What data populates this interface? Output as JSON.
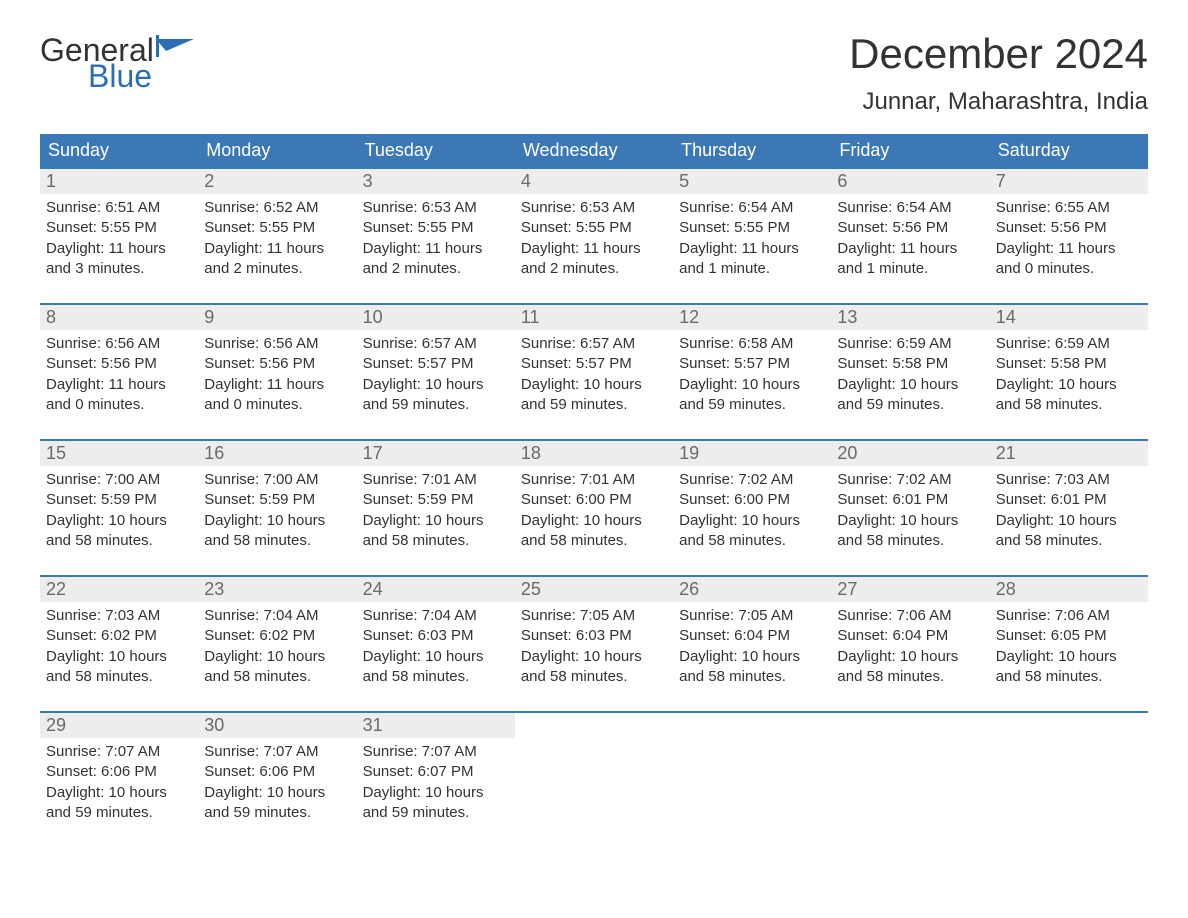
{
  "brand": {
    "word1": "General",
    "word2": "Blue",
    "flag_color": "#2a6fb5",
    "text_color_top": "#333333",
    "text_color_bottom": "#2a6fb5"
  },
  "title": "December 2024",
  "location": "Junnar, Maharashtra, India",
  "colors": {
    "header_bg": "#3b78b5",
    "header_text": "#ffffff",
    "week_border": "#3b78b5",
    "daynum_bg": "#ededed",
    "daynum_text": "#6a6a6a",
    "body_text": "#333333",
    "page_bg": "#ffffff"
  },
  "typography": {
    "title_fontsize": 42,
    "location_fontsize": 24,
    "dow_fontsize": 18,
    "daynum_fontsize": 18,
    "body_fontsize": 15
  },
  "days_of_week": [
    "Sunday",
    "Monday",
    "Tuesday",
    "Wednesday",
    "Thursday",
    "Friday",
    "Saturday"
  ],
  "weeks": [
    [
      {
        "n": "1",
        "sunrise": "Sunrise: 6:51 AM",
        "sunset": "Sunset: 5:55 PM",
        "d1": "Daylight: 11 hours",
        "d2": "and 3 minutes."
      },
      {
        "n": "2",
        "sunrise": "Sunrise: 6:52 AM",
        "sunset": "Sunset: 5:55 PM",
        "d1": "Daylight: 11 hours",
        "d2": "and 2 minutes."
      },
      {
        "n": "3",
        "sunrise": "Sunrise: 6:53 AM",
        "sunset": "Sunset: 5:55 PM",
        "d1": "Daylight: 11 hours",
        "d2": "and 2 minutes."
      },
      {
        "n": "4",
        "sunrise": "Sunrise: 6:53 AM",
        "sunset": "Sunset: 5:55 PM",
        "d1": "Daylight: 11 hours",
        "d2": "and 2 minutes."
      },
      {
        "n": "5",
        "sunrise": "Sunrise: 6:54 AM",
        "sunset": "Sunset: 5:55 PM",
        "d1": "Daylight: 11 hours",
        "d2": "and 1 minute."
      },
      {
        "n": "6",
        "sunrise": "Sunrise: 6:54 AM",
        "sunset": "Sunset: 5:56 PM",
        "d1": "Daylight: 11 hours",
        "d2": "and 1 minute."
      },
      {
        "n": "7",
        "sunrise": "Sunrise: 6:55 AM",
        "sunset": "Sunset: 5:56 PM",
        "d1": "Daylight: 11 hours",
        "d2": "and 0 minutes."
      }
    ],
    [
      {
        "n": "8",
        "sunrise": "Sunrise: 6:56 AM",
        "sunset": "Sunset: 5:56 PM",
        "d1": "Daylight: 11 hours",
        "d2": "and 0 minutes."
      },
      {
        "n": "9",
        "sunrise": "Sunrise: 6:56 AM",
        "sunset": "Sunset: 5:56 PM",
        "d1": "Daylight: 11 hours",
        "d2": "and 0 minutes."
      },
      {
        "n": "10",
        "sunrise": "Sunrise: 6:57 AM",
        "sunset": "Sunset: 5:57 PM",
        "d1": "Daylight: 10 hours",
        "d2": "and 59 minutes."
      },
      {
        "n": "11",
        "sunrise": "Sunrise: 6:57 AM",
        "sunset": "Sunset: 5:57 PM",
        "d1": "Daylight: 10 hours",
        "d2": "and 59 minutes."
      },
      {
        "n": "12",
        "sunrise": "Sunrise: 6:58 AM",
        "sunset": "Sunset: 5:57 PM",
        "d1": "Daylight: 10 hours",
        "d2": "and 59 minutes."
      },
      {
        "n": "13",
        "sunrise": "Sunrise: 6:59 AM",
        "sunset": "Sunset: 5:58 PM",
        "d1": "Daylight: 10 hours",
        "d2": "and 59 minutes."
      },
      {
        "n": "14",
        "sunrise": "Sunrise: 6:59 AM",
        "sunset": "Sunset: 5:58 PM",
        "d1": "Daylight: 10 hours",
        "d2": "and 58 minutes."
      }
    ],
    [
      {
        "n": "15",
        "sunrise": "Sunrise: 7:00 AM",
        "sunset": "Sunset: 5:59 PM",
        "d1": "Daylight: 10 hours",
        "d2": "and 58 minutes."
      },
      {
        "n": "16",
        "sunrise": "Sunrise: 7:00 AM",
        "sunset": "Sunset: 5:59 PM",
        "d1": "Daylight: 10 hours",
        "d2": "and 58 minutes."
      },
      {
        "n": "17",
        "sunrise": "Sunrise: 7:01 AM",
        "sunset": "Sunset: 5:59 PM",
        "d1": "Daylight: 10 hours",
        "d2": "and 58 minutes."
      },
      {
        "n": "18",
        "sunrise": "Sunrise: 7:01 AM",
        "sunset": "Sunset: 6:00 PM",
        "d1": "Daylight: 10 hours",
        "d2": "and 58 minutes."
      },
      {
        "n": "19",
        "sunrise": "Sunrise: 7:02 AM",
        "sunset": "Sunset: 6:00 PM",
        "d1": "Daylight: 10 hours",
        "d2": "and 58 minutes."
      },
      {
        "n": "20",
        "sunrise": "Sunrise: 7:02 AM",
        "sunset": "Sunset: 6:01 PM",
        "d1": "Daylight: 10 hours",
        "d2": "and 58 minutes."
      },
      {
        "n": "21",
        "sunrise": "Sunrise: 7:03 AM",
        "sunset": "Sunset: 6:01 PM",
        "d1": "Daylight: 10 hours",
        "d2": "and 58 minutes."
      }
    ],
    [
      {
        "n": "22",
        "sunrise": "Sunrise: 7:03 AM",
        "sunset": "Sunset: 6:02 PM",
        "d1": "Daylight: 10 hours",
        "d2": "and 58 minutes."
      },
      {
        "n": "23",
        "sunrise": "Sunrise: 7:04 AM",
        "sunset": "Sunset: 6:02 PM",
        "d1": "Daylight: 10 hours",
        "d2": "and 58 minutes."
      },
      {
        "n": "24",
        "sunrise": "Sunrise: 7:04 AM",
        "sunset": "Sunset: 6:03 PM",
        "d1": "Daylight: 10 hours",
        "d2": "and 58 minutes."
      },
      {
        "n": "25",
        "sunrise": "Sunrise: 7:05 AM",
        "sunset": "Sunset: 6:03 PM",
        "d1": "Daylight: 10 hours",
        "d2": "and 58 minutes."
      },
      {
        "n": "26",
        "sunrise": "Sunrise: 7:05 AM",
        "sunset": "Sunset: 6:04 PM",
        "d1": "Daylight: 10 hours",
        "d2": "and 58 minutes."
      },
      {
        "n": "27",
        "sunrise": "Sunrise: 7:06 AM",
        "sunset": "Sunset: 6:04 PM",
        "d1": "Daylight: 10 hours",
        "d2": "and 58 minutes."
      },
      {
        "n": "28",
        "sunrise": "Sunrise: 7:06 AM",
        "sunset": "Sunset: 6:05 PM",
        "d1": "Daylight: 10 hours",
        "d2": "and 58 minutes."
      }
    ],
    [
      {
        "n": "29",
        "sunrise": "Sunrise: 7:07 AM",
        "sunset": "Sunset: 6:06 PM",
        "d1": "Daylight: 10 hours",
        "d2": "and 59 minutes."
      },
      {
        "n": "30",
        "sunrise": "Sunrise: 7:07 AM",
        "sunset": "Sunset: 6:06 PM",
        "d1": "Daylight: 10 hours",
        "d2": "and 59 minutes."
      },
      {
        "n": "31",
        "sunrise": "Sunrise: 7:07 AM",
        "sunset": "Sunset: 6:07 PM",
        "d1": "Daylight: 10 hours",
        "d2": "and 59 minutes."
      },
      {
        "empty": true
      },
      {
        "empty": true
      },
      {
        "empty": true
      },
      {
        "empty": true
      }
    ]
  ]
}
